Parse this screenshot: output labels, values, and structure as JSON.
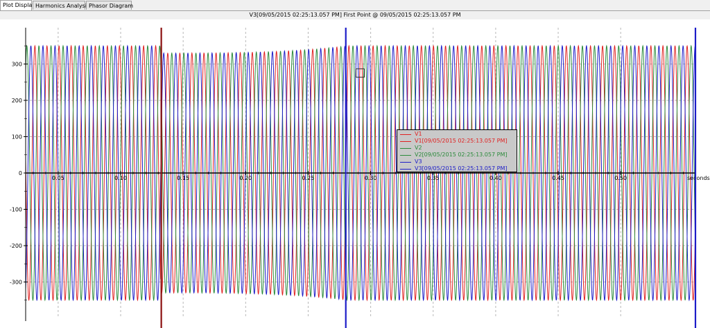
{
  "tabs": [
    {
      "label": "Plot Display",
      "active": true
    },
    {
      "label": "Harmonics Analysis",
      "active": false
    },
    {
      "label": "Phasor Diagram",
      "active": false
    }
  ],
  "plot_title": "V3[09/05/2015 02:25:13.057 PM] First Point @ 09/05/2015 02:25:13.057 PM",
  "colors": {
    "V1": "#e02020",
    "V2": "#2a8a3a",
    "V3": "#1c1cc8",
    "cursor_dark_red": "#8b1010",
    "cursor_blue": "#1c1cc8"
  },
  "legend": [
    {
      "label": "V1",
      "color": "#e02020"
    },
    {
      "label": "V1[09/05/2015 02:25:13.057 PM]",
      "color": "#e02020"
    },
    {
      "label": "V2",
      "color": "#2a8a3a"
    },
    {
      "label": "V2[09/05/2015 02:25:13.057 PM]",
      "color": "#2a8a3a"
    },
    {
      "label": "V3",
      "color": "#1c1cc8"
    },
    {
      "label": "V3[09/05/2015 02:25:13.057 PM]",
      "color": "#1c1cc8"
    }
  ],
  "chart_data": {
    "type": "line",
    "title": "V3[09/05/2015 02:25:13.057 PM] First Point @ 09/05/2015 02:25:13.057 PM",
    "xlabel": "seconds",
    "ylabel": "",
    "xlim": [
      0.024,
      0.5598
    ],
    "ylim": [
      -400,
      400
    ],
    "x_ticks": [
      0.05,
      0.1,
      0.15,
      0.2,
      0.25,
      0.3,
      0.35,
      0.4,
      0.45,
      0.5
    ],
    "x_tick_labels": [
      "0.05",
      "0.10",
      "0.15",
      "0.20",
      "0.25",
      "0.30",
      "0.35",
      "0.40",
      "0.45",
      "0.50"
    ],
    "y_ticks": [
      -300,
      -200,
      -100,
      0,
      100,
      200,
      300
    ],
    "y_tick_labels": [
      "-300",
      "-200",
      "-100",
      "0",
      "100",
      "200",
      "300"
    ],
    "grid": true,
    "legend_position": "center-right",
    "signal_frequency_hz": 103.5,
    "series": [
      {
        "name": "V1",
        "amplitude": 350,
        "dip_amplitude": 330,
        "phase_deg": 0
      },
      {
        "name": "V2",
        "amplitude": 350,
        "dip_amplitude": 330,
        "phase_deg": -120
      },
      {
        "name": "V3",
        "amplitude": 350,
        "dip_amplitude": 330,
        "phase_deg": 120
      }
    ],
    "dip_interval_seconds": [
      0.132,
      0.282
    ],
    "cursors": [
      {
        "x": 0.1325,
        "color": "#8b1010"
      },
      {
        "x": 0.2801,
        "color": "#1c1cc8"
      },
      {
        "x": 0.5598,
        "color": "#1c1cc8"
      }
    ]
  }
}
